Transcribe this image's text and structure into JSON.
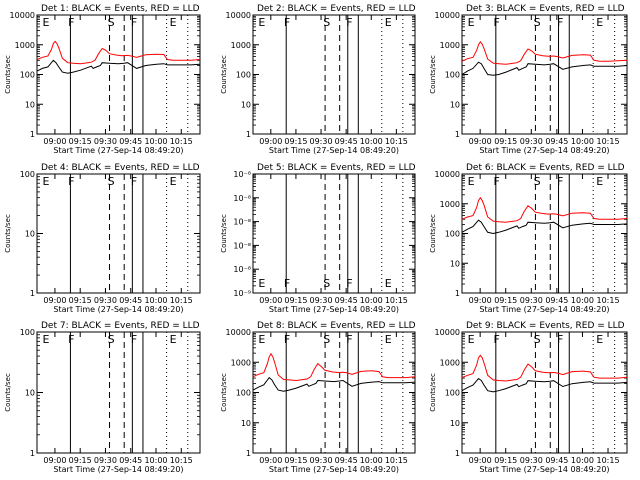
{
  "figure": {
    "xlabel": "Start Time (27-Sep-14 08:49:20)",
    "ylabel": "Counts/sec",
    "x_tick_labels": [
      "09:00",
      "09:15",
      "09:30",
      "09:45",
      "10:00",
      "10:15"
    ],
    "log_tick_labels": [
      "1",
      "10",
      "100",
      "1000",
      "10000"
    ]
  },
  "colors": {
    "events": "#000000",
    "lld": "#ff0000",
    "background": "#ffffff",
    "axes": "#000000"
  },
  "chart_data": [
    {
      "type": "line",
      "title": "Det 1: BLACK = Events, RED = LLD",
      "empty": false,
      "ylog": true,
      "xlim": [
        0,
        90
      ],
      "ylim": [
        1,
        10000
      ],
      "y_tick_labels": [
        "1",
        "10",
        "100",
        "1000",
        "10000"
      ],
      "marker_labels": [
        "E",
        "F",
        "S",
        "F",
        "E"
      ],
      "series": [
        {
          "name": "Events",
          "color": "#000000",
          "x": [
            0,
            3,
            6,
            9,
            10.5,
            12,
            14,
            17,
            20,
            24,
            30,
            31,
            33,
            35,
            36,
            40,
            45,
            48,
            50,
            55,
            60,
            66,
            70,
            72,
            80,
            85,
            90
          ],
          "y": [
            130,
            160,
            180,
            300,
            250,
            180,
            120,
            110,
            120,
            140,
            190,
            160,
            180,
            200,
            250,
            240,
            230,
            240,
            250,
            160,
            200,
            220,
            230,
            210,
            210,
            210,
            220
          ]
        },
        {
          "name": "LLD",
          "color": "#ff0000",
          "x": [
            0,
            3,
            6,
            8,
            9,
            10,
            11,
            12,
            14,
            17,
            20,
            24,
            28,
            30,
            32,
            34,
            36,
            38,
            40,
            44,
            47,
            50,
            52,
            55,
            60,
            66,
            70,
            72,
            75,
            80,
            85,
            90
          ],
          "y": [
            320,
            380,
            420,
            700,
            1100,
            1300,
            1100,
            800,
            350,
            250,
            240,
            230,
            250,
            260,
            300,
            500,
            750,
            650,
            500,
            450,
            430,
            440,
            420,
            380,
            460,
            480,
            470,
            320,
            300,
            300,
            300,
            320
          ]
        }
      ]
    },
    {
      "type": "line",
      "title": "Det 2: BLACK = Events, RED = LLD",
      "empty": true,
      "ylog": true,
      "xlim": [
        0,
        90
      ],
      "ylim": [
        1,
        10000
      ],
      "y_tick_labels": [
        "1",
        "10",
        "100",
        "1000",
        "10000"
      ],
      "marker_labels": [
        "E",
        "F",
        "S",
        "F",
        "E"
      ],
      "series": []
    },
    {
      "type": "line",
      "title": "Det 3: BLACK = Events, RED = LLD",
      "empty": false,
      "ylog": true,
      "xlim": [
        0,
        90
      ],
      "ylim": [
        1,
        10000
      ],
      "y_tick_labels": [
        "1",
        "10",
        "100",
        "1000",
        "10000"
      ],
      "marker_labels": [
        "E",
        "F",
        "S",
        "F",
        "E"
      ],
      "series": [
        {
          "name": "Events",
          "color": "#000000",
          "x": [
            0,
            3,
            6,
            9,
            10.5,
            12,
            14,
            17,
            20,
            24,
            30,
            31,
            33,
            35,
            36,
            40,
            45,
            48,
            50,
            55,
            60,
            66,
            70,
            72,
            80,
            85,
            90
          ],
          "y": [
            100,
            130,
            160,
            260,
            230,
            160,
            100,
            95,
            100,
            120,
            170,
            140,
            160,
            180,
            230,
            220,
            210,
            220,
            230,
            150,
            180,
            200,
            210,
            190,
            190,
            190,
            200
          ]
        },
        {
          "name": "LLD",
          "color": "#ff0000",
          "x": [
            0,
            3,
            6,
            8,
            9,
            10,
            11,
            12,
            14,
            17,
            20,
            24,
            28,
            30,
            32,
            34,
            36,
            38,
            40,
            44,
            47,
            50,
            52,
            55,
            60,
            66,
            70,
            72,
            75,
            80,
            85,
            90
          ],
          "y": [
            280,
            340,
            380,
            650,
            1000,
            1250,
            1050,
            750,
            330,
            240,
            230,
            220,
            240,
            250,
            290,
            480,
            720,
            620,
            480,
            430,
            410,
            420,
            400,
            360,
            440,
            460,
            450,
            300,
            280,
            280,
            290,
            300
          ]
        }
      ]
    },
    {
      "type": "line",
      "title": "Det 4: BLACK = Events, RED = LLD",
      "empty": true,
      "ylog": true,
      "xlim": [
        0,
        90
      ],
      "ylim": [
        1,
        100
      ],
      "y_tick_labels": [
        "1",
        "10",
        "100"
      ],
      "marker_labels": [
        "E",
        "F",
        "S",
        "F",
        "E"
      ],
      "series": []
    },
    {
      "type": "line",
      "title": "Det 5: BLACK = Events, RED = LLD",
      "empty": true,
      "ylog": true,
      "xlim": [
        0,
        90
      ],
      "ylim": [
        1e-09,
        1e-08
      ],
      "y_tick_labels": [
        "10⁻⁹",
        "10⁻⁸",
        "10⁻⁸",
        "10⁻⁸",
        "10⁻⁸",
        "10⁻⁸"
      ],
      "marker_labels": [
        "E",
        "F",
        "S",
        "F",
        "E"
      ],
      "series": []
    },
    {
      "type": "line",
      "title": "Det 6: BLACK = Events, RED = LLD",
      "empty": false,
      "ylog": true,
      "xlim": [
        0,
        90
      ],
      "ylim": [
        1,
        10000
      ],
      "y_tick_labels": [
        "1",
        "10",
        "100",
        "1000",
        "10000"
      ],
      "marker_labels": [
        "E",
        "F",
        "S",
        "F",
        "E"
      ],
      "series": [
        {
          "name": "Events",
          "color": "#000000",
          "x": [
            0,
            3,
            6,
            9,
            10.5,
            12,
            14,
            17,
            20,
            24,
            30,
            31,
            33,
            35,
            36,
            40,
            45,
            48,
            50,
            55,
            60,
            66,
            70,
            72,
            80,
            85,
            90
          ],
          "y": [
            110,
            140,
            170,
            280,
            240,
            170,
            110,
            100,
            110,
            130,
            180,
            150,
            170,
            190,
            240,
            230,
            220,
            230,
            240,
            155,
            190,
            210,
            220,
            200,
            200,
            200,
            210
          ]
        },
        {
          "name": "LLD",
          "color": "#ff0000",
          "x": [
            0,
            3,
            6,
            8,
            9,
            10,
            11,
            12,
            14,
            17,
            20,
            24,
            28,
            30,
            32,
            34,
            36,
            38,
            40,
            44,
            47,
            50,
            52,
            55,
            60,
            66,
            70,
            72,
            75,
            80,
            85,
            90
          ],
          "y": [
            300,
            360,
            400,
            750,
            1300,
            1600,
            1300,
            900,
            360,
            260,
            250,
            240,
            260,
            270,
            320,
            560,
            850,
            700,
            520,
            470,
            450,
            460,
            440,
            390,
            480,
            500,
            480,
            320,
            300,
            300,
            300,
            320
          ]
        }
      ]
    },
    {
      "type": "line",
      "title": "Det 7: BLACK = Events, RED = LLD",
      "empty": true,
      "ylog": true,
      "xlim": [
        0,
        90
      ],
      "ylim": [
        1,
        100
      ],
      "y_tick_labels": [
        "1",
        "10",
        "100"
      ],
      "marker_labels": [
        "E",
        "F",
        "S",
        "F",
        "E"
      ],
      "series": []
    },
    {
      "type": "line",
      "title": "Det 8: BLACK = Events, RED = LLD",
      "empty": false,
      "ylog": true,
      "xlim": [
        0,
        90
      ],
      "ylim": [
        1,
        10000
      ],
      "y_tick_labels": [
        "1",
        "10",
        "100",
        "1000",
        "10000"
      ],
      "marker_labels": [
        "E",
        "F",
        "S",
        "F",
        "E"
      ],
      "series": [
        {
          "name": "Events",
          "color": "#000000",
          "x": [
            0,
            3,
            6,
            9,
            10.5,
            12,
            14,
            17,
            20,
            24,
            30,
            31,
            33,
            35,
            36,
            40,
            45,
            48,
            50,
            55,
            60,
            66,
            70,
            72,
            80,
            85,
            90
          ],
          "y": [
            120,
            150,
            180,
            310,
            260,
            180,
            120,
            110,
            120,
            140,
            190,
            160,
            180,
            200,
            250,
            240,
            230,
            240,
            250,
            160,
            200,
            220,
            230,
            210,
            210,
            210,
            220
          ]
        },
        {
          "name": "LLD",
          "color": "#ff0000",
          "x": [
            0,
            3,
            6,
            8,
            9,
            10,
            11,
            12,
            14,
            17,
            20,
            24,
            28,
            30,
            32,
            34,
            36,
            38,
            40,
            44,
            47,
            50,
            52,
            55,
            60,
            66,
            70,
            72,
            75,
            80,
            85,
            90
          ],
          "y": [
            330,
            400,
            450,
            900,
            1500,
            1900,
            1500,
            1000,
            380,
            270,
            260,
            250,
            270,
            280,
            330,
            580,
            900,
            720,
            540,
            480,
            460,
            470,
            450,
            400,
            500,
            520,
            490,
            330,
            310,
            310,
            310,
            330
          ]
        }
      ]
    },
    {
      "type": "line",
      "title": "Det 9: BLACK = Events, RED = LLD",
      "empty": false,
      "ylog": true,
      "xlim": [
        0,
        90
      ],
      "ylim": [
        1,
        10000
      ],
      "y_tick_labels": [
        "1",
        "10",
        "100",
        "1000",
        "10000"
      ],
      "marker_labels": [
        "E",
        "F",
        "S",
        "F",
        "E"
      ],
      "series": [
        {
          "name": "Events",
          "color": "#000000",
          "x": [
            0,
            3,
            6,
            9,
            10.5,
            12,
            14,
            17,
            20,
            24,
            30,
            31,
            33,
            35,
            36,
            40,
            45,
            48,
            50,
            55,
            60,
            66,
            70,
            72,
            80,
            85,
            90
          ],
          "y": [
            115,
            145,
            175,
            290,
            250,
            175,
            115,
            105,
            115,
            135,
            185,
            155,
            175,
            195,
            245,
            235,
            225,
            235,
            245,
            158,
            195,
            215,
            225,
            205,
            205,
            205,
            215
          ]
        },
        {
          "name": "LLD",
          "color": "#ff0000",
          "x": [
            0,
            3,
            6,
            8,
            9,
            10,
            11,
            12,
            14,
            17,
            20,
            24,
            28,
            30,
            32,
            34,
            36,
            38,
            40,
            44,
            47,
            50,
            52,
            55,
            60,
            66,
            70,
            72,
            75,
            80,
            85,
            90
          ],
          "y": [
            310,
            370,
            420,
            820,
            1400,
            1700,
            1400,
            950,
            370,
            260,
            250,
            240,
            260,
            270,
            320,
            560,
            870,
            700,
            520,
            470,
            450,
            460,
            440,
            390,
            490,
            510,
            480,
            320,
            300,
            300,
            300,
            320
          ]
        }
      ]
    }
  ]
}
